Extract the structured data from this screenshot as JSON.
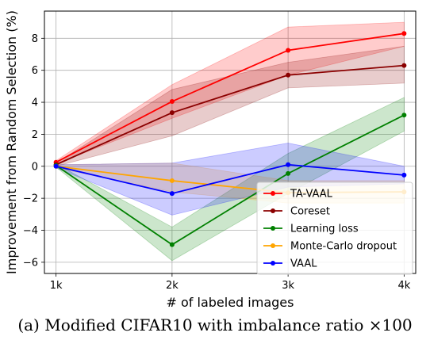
{
  "caption": "(a) Modified CIFAR10 with imbalance ratio ×100",
  "chart_data": {
    "type": "line",
    "title": "",
    "xlabel": "# of labeled images",
    "ylabel": "Improvement from Random Selection (%)",
    "categories": [
      "1k",
      "2k",
      "3k",
      "4k"
    ],
    "xlim": [
      0.9,
      4.1
    ],
    "ylim": [
      -6.7,
      9.7
    ],
    "yticks": [
      -6,
      -4,
      -2,
      0,
      2,
      4,
      6,
      8
    ],
    "grid": true,
    "legend_position": "lower right",
    "series": [
      {
        "name": "TA-VAAL",
        "color": "#ff0000",
        "values": [
          0.25,
          4.05,
          7.25,
          8.3
        ],
        "band_low": [
          0.15,
          3.0,
          5.7,
          7.5
        ],
        "band_high": [
          0.35,
          5.1,
          8.7,
          9.0
        ]
      },
      {
        "name": "Coreset",
        "color": "#8b0000",
        "values": [
          0.1,
          3.35,
          5.7,
          6.3
        ],
        "band_low": [
          0.0,
          1.9,
          4.9,
          5.2
        ],
        "band_high": [
          0.2,
          4.8,
          6.5,
          7.5
        ]
      },
      {
        "name": "Learning loss",
        "color": "#008000",
        "values": [
          0.05,
          -4.9,
          -0.45,
          3.2
        ],
        "band_low": [
          -0.05,
          -5.9,
          -1.7,
          2.2
        ],
        "band_high": [
          0.15,
          -3.8,
          0.8,
          4.3
        ]
      },
      {
        "name": "Monte-Carlo dropout",
        "color": "#ffa500",
        "values": [
          0.0,
          -0.9,
          -1.65,
          -1.6
        ],
        "band_low": [
          -0.1,
          -1.6,
          -2.3,
          -2.3
        ],
        "band_high": [
          0.1,
          0.2,
          -0.9,
          -0.9
        ]
      },
      {
        "name": "VAAL",
        "color": "#0000ff",
        "values": [
          0.0,
          -1.7,
          0.1,
          -0.55
        ],
        "band_low": [
          -0.1,
          -3.05,
          -1.3,
          -1.1
        ],
        "band_high": [
          0.1,
          0.2,
          1.45,
          0.0
        ]
      }
    ]
  }
}
